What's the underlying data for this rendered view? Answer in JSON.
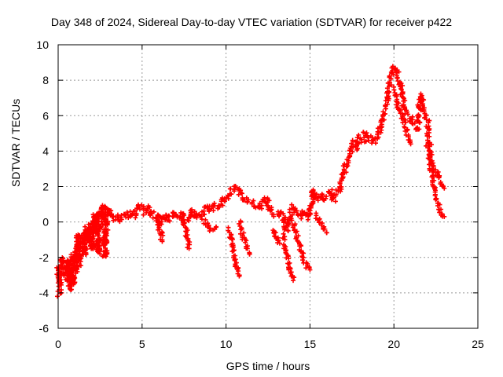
{
  "chart_data": {
    "type": "scatter",
    "title": "Day 348 of 2024, Sidereal Day-to-day VTEC variation (SDTVAR) for receiver p422",
    "xlabel": "GPS time / hours",
    "ylabel": "SDTVAR / TECUs",
    "xlim": [
      0,
      25
    ],
    "ylim": [
      -6,
      10
    ],
    "xticks": [
      0,
      5,
      10,
      15,
      20,
      25
    ],
    "yticks": [
      -6,
      -4,
      -2,
      0,
      2,
      4,
      6,
      8,
      10
    ],
    "grid": true,
    "marker": "+",
    "series_color": "#ff0000",
    "series": [
      {
        "name": "SDTVAR p422",
        "x": [
          0.0,
          0.1,
          0.2,
          0.3,
          0.4,
          0.5,
          0.6,
          0.7,
          0.8,
          0.9,
          1.0,
          1.1,
          1.2,
          1.3,
          1.4,
          1.5,
          1.6,
          1.7,
          1.8,
          1.9,
          2.0,
          2.1,
          2.2,
          2.3,
          2.4,
          2.5,
          2.6,
          2.7,
          2.8,
          2.9,
          3.0,
          3.2,
          3.4,
          3.6,
          3.8,
          4.0,
          4.2,
          4.4,
          4.6,
          4.8,
          5.0,
          5.2,
          5.4,
          5.6,
          5.8,
          6.0,
          6.2,
          6.4,
          6.6,
          6.8,
          7.0,
          7.2,
          7.4,
          7.6,
          7.8,
          8.0,
          8.2,
          8.4,
          8.6,
          8.8,
          9.0,
          9.2,
          9.4,
          9.6,
          9.8,
          10.0,
          10.2,
          10.4,
          10.6,
          10.8,
          11.0,
          11.2,
          11.4,
          11.6,
          11.8,
          12.0,
          12.2,
          12.4,
          12.6,
          12.8,
          13.0,
          13.2,
          13.4,
          13.6,
          13.8,
          14.0,
          14.2,
          14.4,
          14.6,
          14.8,
          15.0,
          15.2,
          15.4,
          15.6,
          15.8,
          16.0,
          16.2,
          16.4,
          16.6,
          16.8,
          17.0,
          17.2,
          17.4,
          17.6,
          17.8,
          18.0,
          18.2,
          18.4,
          18.6,
          18.8,
          19.0,
          19.2,
          19.4,
          19.6,
          19.8,
          20.0,
          20.2,
          20.4,
          20.6,
          20.8,
          21.0,
          21.2,
          21.4,
          21.6,
          21.8,
          22.0,
          22.2,
          22.4,
          22.6,
          22.8,
          23.0
        ],
        "y": [
          -2.6,
          -3.6,
          -2.0,
          -2.3,
          -2.8,
          -3.2,
          -2.1,
          -3.8,
          -2.0,
          -3.5,
          -1.9,
          -2.8,
          -0.7,
          -2.4,
          -1.6,
          -1.0,
          -1.8,
          -0.4,
          -1.2,
          -0.2,
          -1.5,
          0.3,
          -0.6,
          0.5,
          -1.6,
          0.7,
          0.2,
          0.9,
          -1.9,
          0.8,
          0.6,
          0.5,
          0.2,
          0.3,
          0.1,
          0.4,
          0.5,
          0.2,
          0.6,
          0.9,
          0.7,
          0.5,
          0.8,
          0.3,
          0.4,
          -0.3,
          0.2,
          0.4,
          0.1,
          0.5,
          0.3,
          0.2,
          0.5,
          0.1,
          0.2,
          0.6,
          0.3,
          0.5,
          0.4,
          0.8,
          0.6,
          0.9,
          0.7,
          1.0,
          1.2,
          1.4,
          1.6,
          1.8,
          2.0,
          1.7,
          1.4,
          1.2,
          1.1,
          1.0,
          0.9,
          0.7,
          1.2,
          1.4,
          0.8,
          0.5,
          0.4,
          0.6,
          0.3,
          -0.5,
          0.4,
          0.8,
          0.5,
          0.3,
          0.6,
          0.2,
          0.4,
          1.8,
          1.2,
          1.5,
          1.3,
          1.4,
          1.7,
          1.2,
          1.6,
          2.0,
          2.8,
          3.4,
          4.0,
          4.5,
          4.2,
          4.8,
          5.0,
          4.6,
          4.8,
          4.5,
          4.8,
          5.3,
          6.0,
          7.0,
          8.2,
          8.8,
          8.5,
          7.6,
          6.5,
          6.2,
          5.8,
          5.5,
          5.2,
          7.2,
          6.2,
          5.8,
          3.5,
          3.0,
          2.6,
          2.3,
          1.9
        ],
        "branches": [
          {
            "x": [
              1.0,
              1.3,
              1.6,
              1.9,
              2.2,
              2.5,
              2.8
            ],
            "y": [
              -1.8,
              -0.9,
              -0.5,
              -1.0,
              -1.4,
              -1.7,
              -1.9
            ]
          },
          {
            "x": [
              7.4,
              7.6,
              7.8
            ],
            "y": [
              0.4,
              -0.5,
              -1.5
            ]
          },
          {
            "x": [
              10.2,
              10.4,
              10.6,
              10.8
            ],
            "y": [
              -0.4,
              -1.4,
              -2.4,
              -3.0
            ]
          },
          {
            "x": [
              10.8,
              11.0,
              11.2,
              11.4
            ],
            "y": [
              0.0,
              -0.8,
              -1.4,
              -1.8
            ]
          },
          {
            "x": [
              12.8,
              13.0,
              13.2
            ],
            "y": [
              -0.4,
              -0.8,
              -1.2
            ]
          },
          {
            "x": [
              13.4,
              13.6,
              13.8,
              14.0
            ],
            "y": [
              -0.8,
              -1.8,
              -2.6,
              -3.3
            ]
          },
          {
            "x": [
              14.0,
              14.2,
              14.4,
              14.6,
              14.8,
              15.0
            ],
            "y": [
              0.0,
              -0.8,
              -1.4,
              -2.0,
              -2.4,
              -2.7
            ]
          },
          {
            "x": [
              15.4,
              15.6,
              15.8,
              16.0
            ],
            "y": [
              0.4,
              0.0,
              -0.4,
              -0.6
            ]
          },
          {
            "x": [
              6.0,
              6.2
            ],
            "y": [
              0.3,
              -1.1
            ]
          },
          {
            "x": [
              8.6,
              9.0,
              9.4
            ],
            "y": [
              0.2,
              -0.4,
              -0.3
            ]
          },
          {
            "x": [
              20.0,
              20.2,
              20.4,
              20.6,
              20.8,
              21.0
            ],
            "y": [
              7.5,
              6.8,
              6.2,
              5.8,
              4.9,
              4.4
            ]
          },
          {
            "x": [
              22.0,
              22.2,
              22.4,
              22.6,
              22.8,
              23.0
            ],
            "y": [
              4.2,
              3.0,
              2.0,
              1.2,
              0.6,
              0.3
            ]
          },
          {
            "x": [
              0.0,
              0.1,
              0.2
            ],
            "y": [
              -4.1,
              -3.9,
              -4.0
            ]
          }
        ]
      }
    ]
  }
}
